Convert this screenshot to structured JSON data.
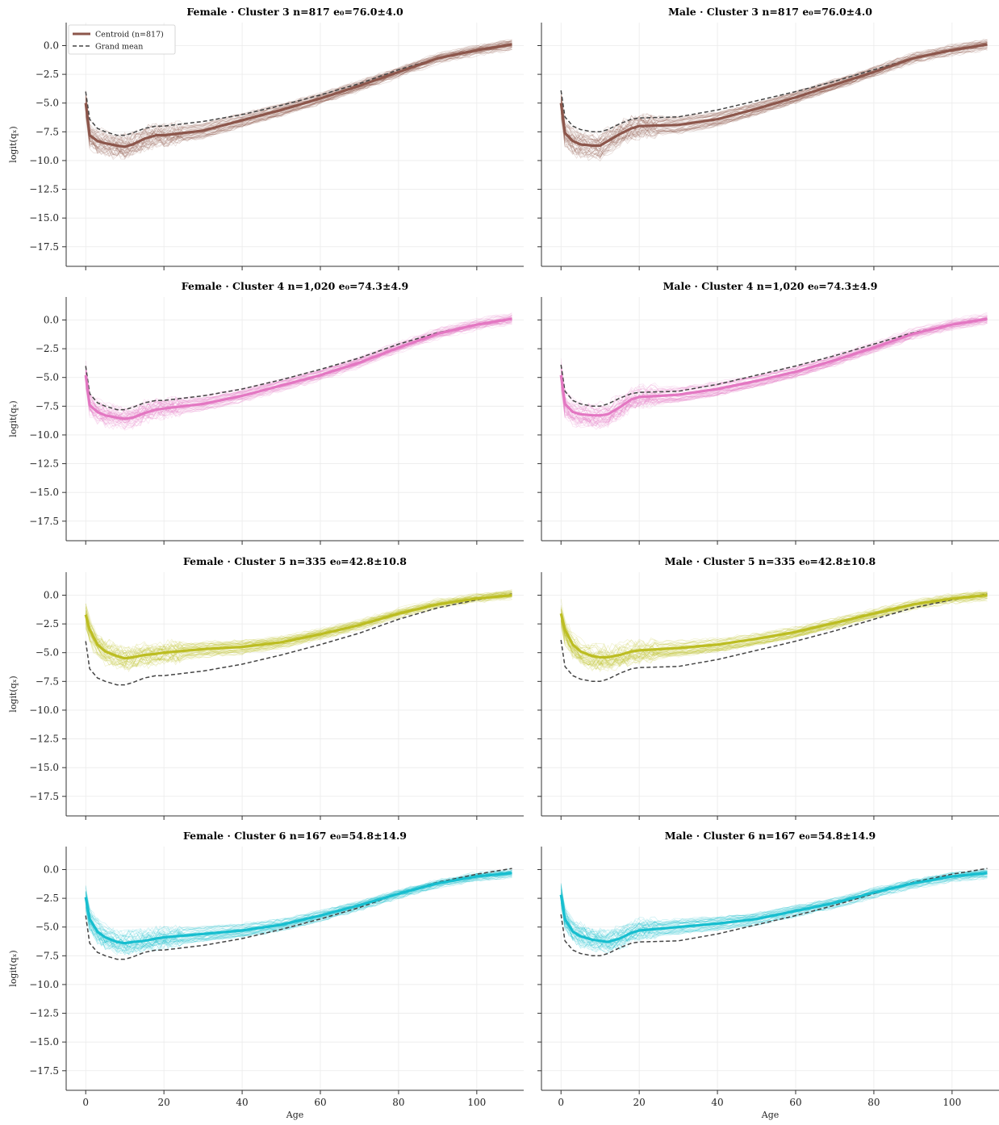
{
  "chart_data": [
    {
      "type": "line",
      "title": "Female · Cluster 3   n=817  e₀=76.0±4.0",
      "ylabel": "logit(qₓ)",
      "xlabel": "",
      "color": "#8c564b",
      "legend": {
        "centroid": "Centroid (n=817)",
        "mean": "Grand mean"
      },
      "xlim": [
        -5,
        112
      ],
      "ylim": [
        -19.2,
        2
      ],
      "series": [
        {
          "name": "Centroid (n=817)",
          "x": [
            0,
            1,
            3,
            5,
            8,
            10,
            12,
            15,
            18,
            20,
            30,
            40,
            50,
            60,
            70,
            80,
            90,
            100,
            109
          ],
          "y": [
            -5.0,
            -7.8,
            -8.3,
            -8.5,
            -8.7,
            -8.8,
            -8.6,
            -8.1,
            -7.8,
            -7.8,
            -7.4,
            -6.5,
            -5.6,
            -4.6,
            -3.5,
            -2.3,
            -1.1,
            -0.4,
            0.1
          ]
        },
        {
          "name": "Grand mean",
          "x": [
            0,
            1,
            3,
            5,
            8,
            10,
            12,
            15,
            18,
            20,
            30,
            40,
            50,
            60,
            70,
            80,
            90,
            100,
            109
          ],
          "y": [
            -4.0,
            -6.4,
            -7.2,
            -7.5,
            -7.8,
            -7.8,
            -7.6,
            -7.2,
            -7.0,
            -7.0,
            -6.6,
            -6.0,
            -5.2,
            -4.3,
            -3.3,
            -2.1,
            -1.1,
            -0.4,
            0.1
          ]
        }
      ]
    },
    {
      "type": "line",
      "title": "Male · Cluster 3   n=817  e₀=76.0±4.0",
      "ylabel": "",
      "xlabel": "",
      "color": "#8c564b",
      "xlim": [
        -5,
        112
      ],
      "ylim": [
        -19.2,
        2
      ],
      "series": [
        {
          "name": "Centroid (n=817)",
          "x": [
            0,
            1,
            3,
            5,
            8,
            10,
            12,
            15,
            18,
            20,
            30,
            40,
            50,
            60,
            70,
            80,
            90,
            100,
            109
          ],
          "y": [
            -5.0,
            -7.6,
            -8.3,
            -8.6,
            -8.7,
            -8.7,
            -8.3,
            -7.7,
            -7.2,
            -7.0,
            -6.9,
            -6.4,
            -5.5,
            -4.5,
            -3.4,
            -2.3,
            -1.1,
            -0.4,
            0.1
          ]
        },
        {
          "name": "Grand mean",
          "x": [
            0,
            1,
            3,
            5,
            8,
            10,
            12,
            15,
            18,
            20,
            30,
            40,
            50,
            60,
            70,
            80,
            90,
            100,
            109
          ],
          "y": [
            -3.9,
            -6.2,
            -7.0,
            -7.3,
            -7.5,
            -7.5,
            -7.3,
            -6.8,
            -6.4,
            -6.3,
            -6.2,
            -5.6,
            -4.8,
            -4.0,
            -3.1,
            -2.1,
            -1.1,
            -0.4,
            0.1
          ]
        }
      ]
    },
    {
      "type": "line",
      "title": "Female · Cluster 4   n=1,020  e₀=74.3±4.9",
      "ylabel": "logit(qₓ)",
      "xlabel": "",
      "color": "#e377c2",
      "xlim": [
        -5,
        112
      ],
      "ylim": [
        -19.2,
        2
      ],
      "series": [
        {
          "name": "Centroid",
          "x": [
            0,
            1,
            3,
            5,
            8,
            10,
            12,
            15,
            18,
            20,
            30,
            40,
            50,
            60,
            70,
            80,
            90,
            100,
            109
          ],
          "y": [
            -4.8,
            -7.4,
            -8.0,
            -8.3,
            -8.5,
            -8.6,
            -8.5,
            -8.1,
            -7.8,
            -7.7,
            -7.3,
            -6.6,
            -5.7,
            -4.8,
            -3.7,
            -2.4,
            -1.2,
            -0.4,
            0.1
          ]
        },
        {
          "name": "Grand mean",
          "x": [
            0,
            1,
            3,
            5,
            8,
            10,
            12,
            15,
            18,
            20,
            30,
            40,
            50,
            60,
            70,
            80,
            90,
            100,
            109
          ],
          "y": [
            -4.0,
            -6.4,
            -7.2,
            -7.5,
            -7.8,
            -7.8,
            -7.6,
            -7.2,
            -7.0,
            -7.0,
            -6.6,
            -6.0,
            -5.2,
            -4.3,
            -3.3,
            -2.1,
            -1.1,
            -0.4,
            0.1
          ]
        }
      ]
    },
    {
      "type": "line",
      "title": "Male · Cluster 4   n=1,020  e₀=74.3±4.9",
      "ylabel": "",
      "xlabel": "",
      "color": "#e377c2",
      "xlim": [
        -5,
        112
      ],
      "ylim": [
        -19.2,
        2
      ],
      "series": [
        {
          "name": "Centroid",
          "x": [
            0,
            1,
            3,
            5,
            8,
            10,
            12,
            15,
            18,
            20,
            30,
            40,
            50,
            60,
            70,
            80,
            90,
            100,
            109
          ],
          "y": [
            -4.8,
            -7.3,
            -8.0,
            -8.2,
            -8.3,
            -8.3,
            -8.2,
            -7.6,
            -6.9,
            -6.7,
            -6.5,
            -6.0,
            -5.3,
            -4.5,
            -3.5,
            -2.4,
            -1.2,
            -0.4,
            0.1
          ]
        },
        {
          "name": "Grand mean",
          "x": [
            0,
            1,
            3,
            5,
            8,
            10,
            12,
            15,
            18,
            20,
            30,
            40,
            50,
            60,
            70,
            80,
            90,
            100,
            109
          ],
          "y": [
            -3.9,
            -6.2,
            -7.0,
            -7.3,
            -7.5,
            -7.5,
            -7.3,
            -6.8,
            -6.4,
            -6.3,
            -6.2,
            -5.6,
            -4.8,
            -4.0,
            -3.1,
            -2.1,
            -1.1,
            -0.4,
            0.1
          ]
        }
      ]
    },
    {
      "type": "line",
      "title": "Female · Cluster 5   n=335  e₀=42.8±10.8",
      "ylabel": "logit(qₓ)",
      "xlabel": "",
      "color": "#bcbd22",
      "xlim": [
        -5,
        112
      ],
      "ylim": [
        -19.2,
        2
      ],
      "series": [
        {
          "name": "Centroid",
          "x": [
            0,
            1,
            3,
            5,
            8,
            10,
            12,
            15,
            18,
            20,
            30,
            40,
            50,
            60,
            70,
            80,
            90,
            100,
            109
          ],
          "y": [
            -1.7,
            -3.0,
            -4.3,
            -4.9,
            -5.3,
            -5.5,
            -5.4,
            -5.2,
            -5.1,
            -5.0,
            -4.7,
            -4.5,
            -4.1,
            -3.4,
            -2.6,
            -1.6,
            -0.8,
            -0.3,
            0.0
          ]
        },
        {
          "name": "Grand mean",
          "x": [
            0,
            1,
            3,
            5,
            8,
            10,
            12,
            15,
            18,
            20,
            30,
            40,
            50,
            60,
            70,
            80,
            90,
            100,
            109
          ],
          "y": [
            -4.0,
            -6.4,
            -7.2,
            -7.5,
            -7.8,
            -7.8,
            -7.6,
            -7.2,
            -7.0,
            -7.0,
            -6.6,
            -6.0,
            -5.2,
            -4.3,
            -3.3,
            -2.1,
            -1.1,
            -0.4,
            0.1
          ]
        }
      ]
    },
    {
      "type": "line",
      "title": "Male · Cluster 5   n=335  e₀=42.8±10.8",
      "ylabel": "",
      "xlabel": "",
      "color": "#bcbd22",
      "xlim": [
        -5,
        112
      ],
      "ylim": [
        -19.2,
        2
      ],
      "series": [
        {
          "name": "Centroid",
          "x": [
            0,
            1,
            3,
            5,
            8,
            10,
            12,
            15,
            18,
            20,
            30,
            40,
            50,
            60,
            70,
            80,
            90,
            100,
            109
          ],
          "y": [
            -1.6,
            -3.0,
            -4.3,
            -4.9,
            -5.3,
            -5.4,
            -5.4,
            -5.2,
            -4.9,
            -4.8,
            -4.6,
            -4.3,
            -3.8,
            -3.2,
            -2.4,
            -1.6,
            -0.8,
            -0.3,
            0.0
          ]
        },
        {
          "name": "Grand mean",
          "x": [
            0,
            1,
            3,
            5,
            8,
            10,
            12,
            15,
            18,
            20,
            30,
            40,
            50,
            60,
            70,
            80,
            90,
            100,
            109
          ],
          "y": [
            -3.9,
            -6.2,
            -7.0,
            -7.3,
            -7.5,
            -7.5,
            -7.3,
            -6.8,
            -6.4,
            -6.3,
            -6.2,
            -5.6,
            -4.8,
            -4.0,
            -3.1,
            -2.1,
            -1.1,
            -0.4,
            0.1
          ]
        }
      ]
    },
    {
      "type": "line",
      "title": "Female · Cluster 6   n=167  e₀=54.8±14.9",
      "ylabel": "logit(qₓ)",
      "xlabel": "Age",
      "color": "#17becf",
      "xlim": [
        -5,
        112
      ],
      "ylim": [
        -19.2,
        2
      ],
      "series": [
        {
          "name": "Centroid",
          "x": [
            0,
            1,
            3,
            5,
            8,
            10,
            12,
            15,
            18,
            20,
            30,
            40,
            50,
            60,
            70,
            80,
            90,
            100,
            109
          ],
          "y": [
            -2.4,
            -4.3,
            -5.4,
            -5.9,
            -6.3,
            -6.4,
            -6.3,
            -6.2,
            -6.0,
            -5.9,
            -5.6,
            -5.3,
            -4.8,
            -4.0,
            -3.1,
            -2.1,
            -1.2,
            -0.6,
            -0.3
          ]
        },
        {
          "name": "Grand mean",
          "x": [
            0,
            1,
            3,
            5,
            8,
            10,
            12,
            15,
            18,
            20,
            30,
            40,
            50,
            60,
            70,
            80,
            90,
            100,
            109
          ],
          "y": [
            -4.0,
            -6.4,
            -7.2,
            -7.5,
            -7.8,
            -7.8,
            -7.6,
            -7.2,
            -7.0,
            -7.0,
            -6.6,
            -6.0,
            -5.2,
            -4.3,
            -3.3,
            -2.1,
            -1.1,
            -0.4,
            0.1
          ]
        }
      ]
    },
    {
      "type": "line",
      "title": "Male · Cluster 6   n=167  e₀=54.8±14.9",
      "ylabel": "",
      "xlabel": "Age",
      "color": "#17becf",
      "xlim": [
        -5,
        112
      ],
      "ylim": [
        -19.2,
        2
      ],
      "series": [
        {
          "name": "Centroid",
          "x": [
            0,
            1,
            3,
            5,
            8,
            10,
            12,
            15,
            18,
            20,
            30,
            40,
            50,
            60,
            70,
            80,
            90,
            100,
            109
          ],
          "y": [
            -2.2,
            -4.3,
            -5.4,
            -5.8,
            -6.1,
            -6.2,
            -6.3,
            -6.0,
            -5.5,
            -5.3,
            -5.0,
            -4.7,
            -4.3,
            -3.6,
            -2.9,
            -2.0,
            -1.2,
            -0.6,
            -0.3
          ]
        },
        {
          "name": "Grand mean",
          "x": [
            0,
            1,
            3,
            5,
            8,
            10,
            12,
            15,
            18,
            20,
            30,
            40,
            50,
            60,
            70,
            80,
            90,
            100,
            109
          ],
          "y": [
            -3.9,
            -6.2,
            -7.0,
            -7.3,
            -7.5,
            -7.5,
            -7.3,
            -6.8,
            -6.4,
            -6.3,
            -6.2,
            -5.6,
            -4.8,
            -4.0,
            -3.1,
            -2.1,
            -1.1,
            -0.4,
            0.1
          ]
        }
      ]
    }
  ],
  "axes": {
    "x_ticks": [
      0,
      20,
      40,
      60,
      80,
      100
    ],
    "y_ticks": [
      0.0,
      -2.5,
      -5.0,
      -7.5,
      -10.0,
      -12.5,
      -15.0,
      -17.5
    ],
    "y_tick_labels": [
      "0.0",
      "−2.5",
      "−5.0",
      "−7.5",
      "−10.0",
      "−12.5",
      "−15.0",
      "−17.5"
    ],
    "grid": true
  }
}
